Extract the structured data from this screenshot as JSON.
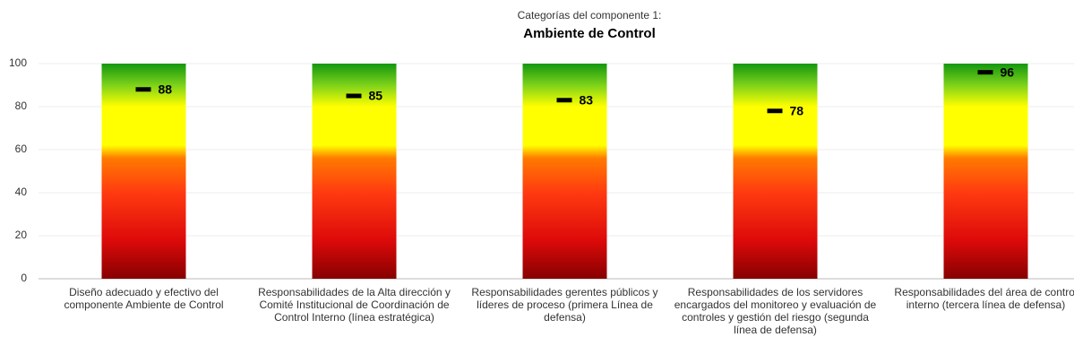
{
  "chart_data": {
    "type": "bullet",
    "title": "Categorías del componente 1:",
    "subtitle": "Ambiente de Control",
    "categories": [
      "Diseño adecuado y efectivo del componente Ambiente de Control",
      "Responsabilidades de la Alta dirección y Comité Institucional de Coordinación de Control Interno (línea estratégica)",
      "Responsabilidades gerentes públicos y líderes de proceso (primera Línea de defensa)",
      "Responsabilidades de los servidores encargados del monitoreo y evaluación de controles y gestión del riesgo (segunda línea de defensa)",
      "Responsabilidades del área de control interno (tercera línea de defensa)"
    ],
    "values": [
      88,
      85,
      83,
      78,
      96
    ],
    "marker_color": "#000000",
    "ylim": [
      0,
      100
    ],
    "yticks": [
      0,
      20,
      40,
      60,
      80,
      100
    ],
    "grid": true
  }
}
